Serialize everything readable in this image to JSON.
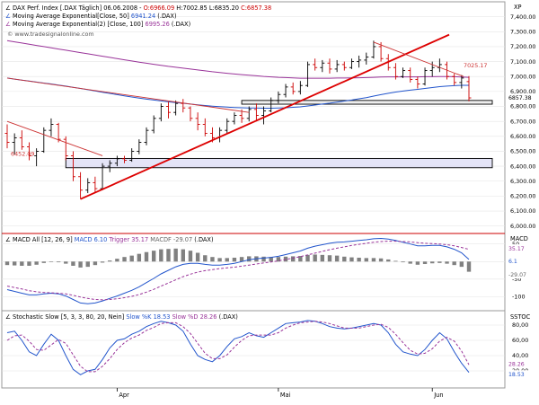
{
  "main_panel": {
    "legend": [
      {
        "text": "DAX Perf. Index [.DAX Täglich] 06.06.2008 - ",
        "color": "#000000",
        "parts": [
          {
            "label": "O:6966.09",
            "color": "#cc0000"
          },
          {
            "label": " H:7002.85",
            "color": "#000000"
          },
          {
            "label": " L:6835.20",
            "color": "#000000"
          },
          {
            "label": " C:6857.38",
            "color": "#cc0000"
          }
        ]
      },
      {
        "text": "Moving Average Exponential[Close, 50] ",
        "value": "6941.24",
        "suffix": " (.DAX)",
        "color": "#2255cc"
      },
      {
        "text": "Moving Average Exponential(2) [Close, 100] ",
        "value": "6995.26",
        "suffix": " (.DAX)",
        "color": "#993399"
      }
    ],
    "watermark": "© www.tradesignalonline.com",
    "unit_label": "XP",
    "annotation_left": "6452.09",
    "annotation_right": "7025.17",
    "last_price_tag": "6857.38"
  },
  "macd_panel": {
    "legend_title": "MACD All [12, 26, 9]",
    "legend_parts": [
      {
        "label": " MACD 6.10",
        "color": "#2255cc"
      },
      {
        "label": " Trigger 35.17",
        "color": "#993399"
      },
      {
        "label": " MACDF -29.07",
        "color": "#666666"
      },
      {
        "label": " (.DAX)",
        "color": "#000000"
      }
    ],
    "unit_label": "MACD",
    "value_tags": [
      "35.17",
      "6.1",
      "-29.07"
    ]
  },
  "stoch_panel": {
    "legend_title": "Stochastic Slow [5, 3, 3, 80, 20, Nein]",
    "legend_parts": [
      {
        "label": " Slow %K 18.53",
        "color": "#2255cc"
      },
      {
        "label": " Slow %D 28.26",
        "color": "#993399"
      },
      {
        "label": " (.DAX)",
        "color": "#000000"
      }
    ],
    "unit_label": "SSTOC",
    "value_tags": [
      "28.26",
      "18.53"
    ]
  },
  "x_axis": {
    "labels": [
      "Apr",
      "Mai",
      "Jun"
    ]
  },
  "chart_data": [
    {
      "type": "candlestick",
      "title": "DAX Perf. Index [.DAX Täglich] 06.06.2008",
      "ylim": [
        5950,
        7500
      ],
      "yticks": [
        6000,
        6100,
        6200,
        6300,
        6400,
        6500,
        6600,
        6700,
        6800,
        6900,
        7000,
        7100,
        7200,
        7300,
        7400
      ],
      "ytick_labels": [
        "6,000.00",
        "6,100.00",
        "6,200.00",
        "6,300.00",
        "6,400.00",
        "6,500.00",
        "6,600.00",
        "6,700.00",
        "6,800.00",
        "6,900.00",
        "7,000.00",
        "7,100.00",
        "7,200.00",
        "7,300.00",
        "7,400.00"
      ],
      "bars": [
        [
          6620,
          6680,
          6520,
          6560
        ],
        [
          6560,
          6620,
          6480,
          6590
        ],
        [
          6590,
          6640,
          6510,
          6530
        ],
        [
          6530,
          6560,
          6440,
          6470
        ],
        [
          6470,
          6520,
          6400,
          6500
        ],
        [
          6500,
          6660,
          6490,
          6640
        ],
        [
          6640,
          6720,
          6600,
          6680
        ],
        [
          6680,
          6690,
          6560,
          6580
        ],
        [
          6580,
          6600,
          6440,
          6470
        ],
        [
          6470,
          6500,
          6300,
          6330
        ],
        [
          6330,
          6360,
          6180,
          6240
        ],
        [
          6240,
          6320,
          6220,
          6290
        ],
        [
          6290,
          6330,
          6220,
          6250
        ],
        [
          6250,
          6420,
          6240,
          6400
        ],
        [
          6400,
          6440,
          6360,
          6420
        ],
        [
          6420,
          6470,
          6400,
          6450
        ],
        [
          6450,
          6470,
          6420,
          6440
        ],
        [
          6440,
          6520,
          6430,
          6500
        ],
        [
          6500,
          6580,
          6480,
          6560
        ],
        [
          6560,
          6660,
          6540,
          6640
        ],
        [
          6640,
          6740,
          6620,
          6720
        ],
        [
          6720,
          6820,
          6700,
          6800
        ],
        [
          6800,
          6830,
          6720,
          6760
        ],
        [
          6760,
          6840,
          6740,
          6820
        ],
        [
          6820,
          6850,
          6760,
          6790
        ],
        [
          6790,
          6800,
          6700,
          6720
        ],
        [
          6720,
          6760,
          6640,
          6680
        ],
        [
          6680,
          6720,
          6600,
          6620
        ],
        [
          6620,
          6660,
          6560,
          6590
        ],
        [
          6590,
          6660,
          6560,
          6640
        ],
        [
          6640,
          6720,
          6620,
          6700
        ],
        [
          6700,
          6760,
          6680,
          6740
        ],
        [
          6740,
          6780,
          6690,
          6720
        ],
        [
          6720,
          6800,
          6700,
          6780
        ],
        [
          6780,
          6820,
          6700,
          6740
        ],
        [
          6740,
          6800,
          6680,
          6770
        ],
        [
          6770,
          6860,
          6760,
          6840
        ],
        [
          6840,
          6900,
          6820,
          6880
        ],
        [
          6880,
          6950,
          6860,
          6930
        ],
        [
          6930,
          6960,
          6880,
          6900
        ],
        [
          6900,
          6970,
          6880,
          6940
        ],
        [
          6940,
          7100,
          6930,
          7080
        ],
        [
          7080,
          7120,
          7040,
          7060
        ],
        [
          7060,
          7110,
          7030,
          7090
        ],
        [
          7090,
          7120,
          7020,
          7050
        ],
        [
          7050,
          7110,
          7030,
          7080
        ],
        [
          7080,
          7100,
          7040,
          7060
        ],
        [
          7060,
          7120,
          7050,
          7100
        ],
        [
          7100,
          7140,
          7060,
          7110
        ],
        [
          7110,
          7160,
          7080,
          7130
        ],
        [
          7130,
          7240,
          7120,
          7200
        ],
        [
          7200,
          7230,
          7100,
          7120
        ],
        [
          7120,
          7150,
          7040,
          7060
        ],
        [
          7060,
          7090,
          6980,
          7000
        ],
        [
          7000,
          7060,
          6990,
          7040
        ],
        [
          7040,
          7060,
          6960,
          6980
        ],
        [
          6980,
          7000,
          6920,
          6950
        ],
        [
          6950,
          7060,
          6940,
          7040
        ],
        [
          7040,
          7100,
          7000,
          7060
        ],
        [
          7060,
          7120,
          7030,
          7080
        ],
        [
          7080,
          7100,
          6980,
          7000
        ],
        [
          7000,
          7020,
          6940,
          6960
        ],
        [
          6960,
          7010,
          6920,
          6990
        ],
        [
          6966,
          7003,
          6835,
          6857
        ]
      ],
      "series": [
        {
          "name": "Moving Average Exponential[Close, 50]",
          "values": [
            6990,
            6983,
            6976,
            6970,
            6963,
            6956,
            6950,
            6943,
            6936,
            6928,
            6920,
            6912,
            6904,
            6895,
            6887,
            6879,
            6871,
            6863,
            6856,
            6849,
            6843,
            6837,
            6831,
            6826,
            6821,
            6816,
            6811,
            6806,
            6802,
            6798,
            6795,
            6793,
            6791,
            6790,
            6789,
            6788,
            6788,
            6789,
            6791,
            6794,
            6797,
            6803,
            6809,
            6816,
            6822,
            6829,
            6836,
            6843,
            6851,
            6859,
            6869,
            6879,
            6888,
            6896,
            6903,
            6909,
            6914,
            6920,
            6926,
            6932,
            6936,
            6939,
            6941,
            6941
          ]
        },
        {
          "name": "Moving Average Exponential(2) [Close, 100]",
          "values": [
            7240,
            7232,
            7224,
            7216,
            7208,
            7200,
            7192,
            7184,
            7176,
            7168,
            7160,
            7152,
            7144,
            7136,
            7128,
            7120,
            7112,
            7104,
            7096,
            7089,
            7082,
            7075,
            7068,
            7062,
            7056,
            7050,
            7044,
            7038,
            7032,
            7027,
            7022,
            7017,
            7013,
            7009,
            7005,
            7001,
            6998,
            6995,
            6993,
            6991,
            6989,
            6989,
            6989,
            6989,
            6989,
            6990,
            6990,
            6991,
            6992,
            6993,
            6995,
            6997,
            6998,
            6998,
            6998,
            6998,
            6998,
            6999,
            6999,
            7000,
            7000,
            6999,
            6997,
            6995
          ]
        }
      ],
      "annotations": [
        {
          "label": "6452.09",
          "value": 6452
        },
        {
          "label": "7025.17",
          "value": 7025
        }
      ]
    },
    {
      "type": "line",
      "title": "MACD All [12, 26, 9]",
      "ylim": [
        -140,
        80
      ],
      "yticks": [
        50,
        0,
        -50,
        -100
      ],
      "ytick_labels": [
        "50",
        "0",
        "-50",
        "-100"
      ],
      "series": [
        {
          "name": "MACD",
          "values": [
            -80,
            -85,
            -90,
            -95,
            -95,
            -92,
            -90,
            -92,
            -98,
            -108,
            -118,
            -120,
            -118,
            -112,
            -105,
            -98,
            -90,
            -82,
            -72,
            -60,
            -48,
            -35,
            -25,
            -15,
            -8,
            -5,
            -5,
            -8,
            -10,
            -10,
            -8,
            -5,
            0,
            5,
            8,
            10,
            12,
            15,
            20,
            25,
            30,
            38,
            44,
            48,
            52,
            55,
            56,
            58,
            60,
            62,
            65,
            66,
            64,
            60,
            55,
            50,
            45,
            45,
            46,
            46,
            42,
            35,
            25,
            6
          ]
        },
        {
          "name": "Trigger",
          "values": [
            -70,
            -74,
            -78,
            -83,
            -86,
            -88,
            -89,
            -90,
            -92,
            -96,
            -101,
            -105,
            -108,
            -109,
            -108,
            -106,
            -103,
            -99,
            -94,
            -87,
            -79,
            -70,
            -61,
            -52,
            -43,
            -36,
            -30,
            -26,
            -23,
            -20,
            -18,
            -16,
            -13,
            -10,
            -7,
            -4,
            -1,
            2,
            6,
            10,
            14,
            19,
            24,
            29,
            34,
            38,
            42,
            46,
            49,
            52,
            55,
            57,
            58,
            58,
            57,
            56,
            54,
            52,
            51,
            50,
            48,
            45,
            40,
            35
          ]
        },
        {
          "name": "MACDF",
          "values": [
            -10,
            -11,
            -12,
            -12,
            -9,
            -4,
            -1,
            -2,
            -6,
            -12,
            -17,
            -15,
            -10,
            -3,
            3,
            8,
            13,
            17,
            22,
            27,
            31,
            35,
            36,
            37,
            35,
            31,
            25,
            18,
            13,
            10,
            10,
            11,
            13,
            15,
            15,
            14,
            13,
            13,
            14,
            15,
            16,
            19,
            20,
            19,
            18,
            17,
            14,
            12,
            11,
            10,
            10,
            9,
            6,
            2,
            -2,
            -6,
            -9,
            -7,
            -5,
            -4,
            -6,
            -10,
            -15,
            -29
          ]
        }
      ],
      "annotations": [
        {
          "label": "35.17",
          "value": 35
        },
        {
          "label": "6.1",
          "value": 6
        },
        {
          "label": "-29.07",
          "value": -29
        }
      ]
    },
    {
      "type": "line",
      "title": "Stochastic Slow [5, 3, 3, 80, 20, Nein]",
      "ylim": [
        0,
        100
      ],
      "yticks": [
        80,
        60,
        40,
        20
      ],
      "ytick_labels": [
        "80,00",
        "60,00",
        "40,00",
        "20,00"
      ],
      "series": [
        {
          "name": "Slow %K",
          "values": [
            70,
            72,
            60,
            45,
            40,
            55,
            68,
            60,
            40,
            22,
            15,
            20,
            22,
            35,
            50,
            60,
            62,
            68,
            72,
            78,
            82,
            85,
            83,
            80,
            72,
            55,
            40,
            35,
            32,
            40,
            52,
            62,
            65,
            70,
            66,
            64,
            70,
            76,
            82,
            83,
            84,
            86,
            85,
            82,
            78,
            76,
            75,
            76,
            78,
            80,
            82,
            80,
            70,
            55,
            45,
            42,
            40,
            48,
            60,
            70,
            62,
            45,
            30,
            18
          ]
        },
        {
          "name": "Slow %D",
          "values": [
            60,
            66,
            67,
            59,
            48,
            47,
            54,
            61,
            56,
            41,
            26,
            19,
            19,
            26,
            36,
            48,
            57,
            63,
            67,
            73,
            77,
            82,
            83,
            83,
            78,
            69,
            56,
            43,
            36,
            36,
            41,
            51,
            60,
            66,
            67,
            67,
            67,
            70,
            76,
            80,
            83,
            84,
            85,
            84,
            82,
            79,
            76,
            76,
            76,
            78,
            80,
            81,
            77,
            68,
            57,
            47,
            42,
            43,
            49,
            59,
            64,
            59,
            46,
            28
          ]
        }
      ],
      "annotations": [
        {
          "label": "28.26",
          "value": 28
        },
        {
          "label": "18.53",
          "value": 19
        }
      ]
    }
  ]
}
